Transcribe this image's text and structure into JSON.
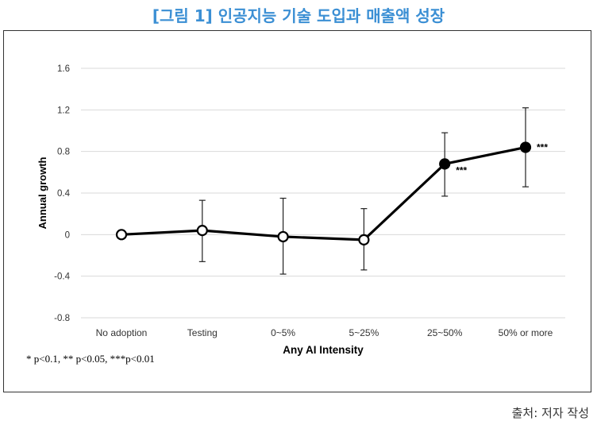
{
  "figure": {
    "title": "[그림 1] 인공지능 기술 도입과 매출액 성장",
    "footnote": "* p<0.1, ** p<0.05, ***p<0.01",
    "source": "출처: 저자 작성"
  },
  "colors": {
    "title": "#3b8fd4",
    "line": "#000000",
    "grid": "#d9d9d9",
    "open_marker_fill": "#ffffff",
    "filled_marker_fill": "#000000"
  },
  "chart_data": {
    "type": "line",
    "title": "",
    "xlabel": "Any AI Intensity",
    "ylabel": "Annual growth",
    "categories": [
      "No adoption",
      "Testing",
      "0~5%",
      "5~25%",
      "25~50%",
      "50% or more"
    ],
    "ylim": [
      -0.8,
      1.6
    ],
    "yticks": [
      1.6,
      1.2,
      0.8,
      0.4,
      0,
      -0.4,
      -0.8
    ],
    "ytick_labels": [
      "1.6",
      "1.2",
      "0.8",
      "0.4",
      "0",
      "-0.4",
      "-0.8"
    ],
    "grid": "horizontal",
    "series": [
      {
        "values": [
          0,
          0.04,
          -0.02,
          -0.05,
          0.68,
          0.84
        ],
        "ci_low": [
          null,
          -0.26,
          -0.38,
          -0.34,
          0.37,
          0.46
        ],
        "ci_high": [
          null,
          0.33,
          0.35,
          0.25,
          0.98,
          1.22
        ],
        "marker_style": [
          "open",
          "open",
          "open",
          "open",
          "filled",
          "filled"
        ],
        "significance": [
          "",
          "",
          "",
          "",
          "***",
          "***"
        ]
      }
    ]
  }
}
